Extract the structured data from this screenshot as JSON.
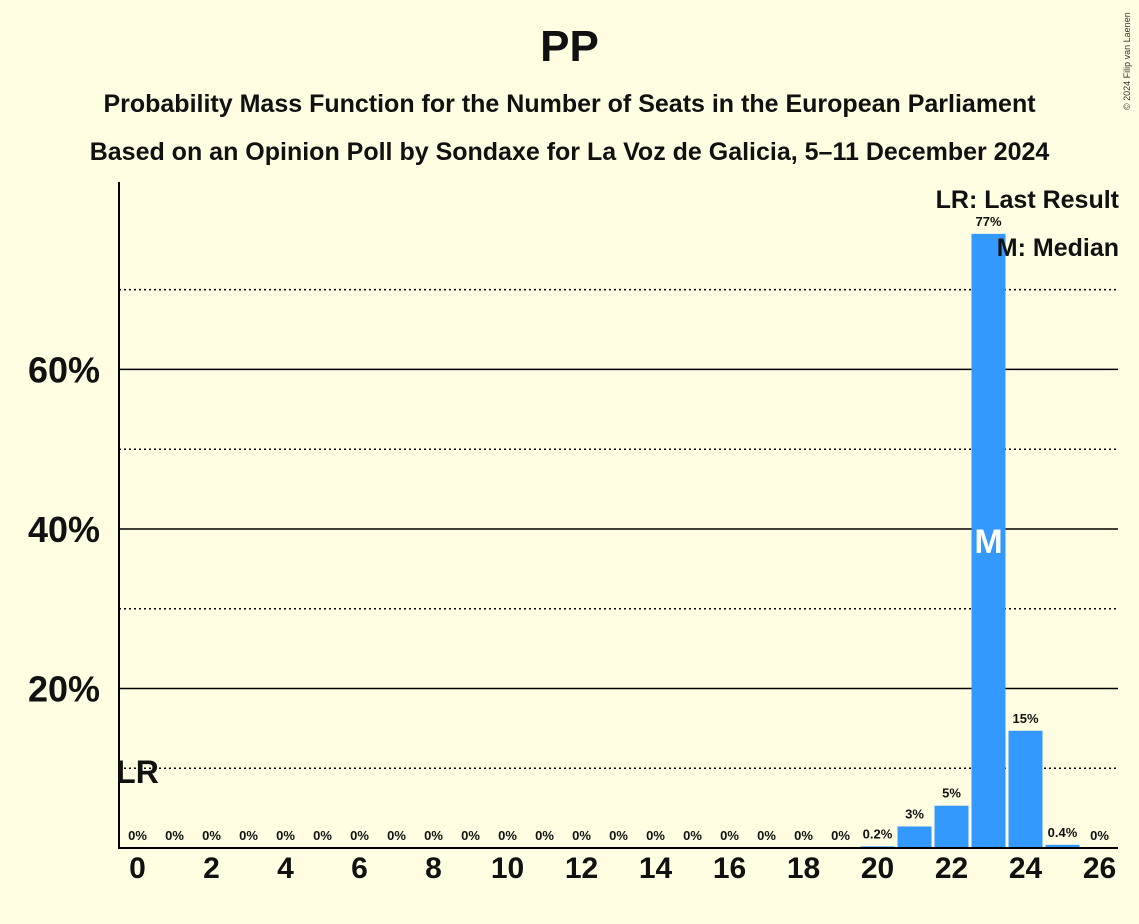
{
  "title": "PP",
  "subtitle1": "Probability Mass Function for the Number of Seats in the European Parliament",
  "subtitle2": "Based on an Opinion Poll by Sondaxe for La Voz de Galicia, 5–11 December 2024",
  "copyright": "© 2024 Filip van Laenen",
  "legend": {
    "last_result": "LR: Last Result",
    "median": "M: Median"
  },
  "colors": {
    "bar": "#3399FF",
    "background": "#FFFEE3"
  },
  "chart_data": {
    "type": "bar",
    "categories": [
      0,
      1,
      2,
      3,
      4,
      5,
      6,
      7,
      8,
      9,
      10,
      11,
      12,
      13,
      14,
      15,
      16,
      17,
      18,
      19,
      20,
      21,
      22,
      23,
      24,
      25,
      26
    ],
    "values": [
      0,
      0,
      0,
      0,
      0,
      0,
      0,
      0,
      0,
      0,
      0,
      0,
      0,
      0,
      0,
      0,
      0,
      0,
      0,
      0,
      0.2,
      2.7,
      5.3,
      77,
      14.7,
      0.4,
      0
    ],
    "labels": [
      "0%",
      "0%",
      "0%",
      "0%",
      "0%",
      "0%",
      "0%",
      "0%",
      "0%",
      "0%",
      "0%",
      "0%",
      "0%",
      "0%",
      "0%",
      "0%",
      "0%",
      "0%",
      "0%",
      "0%",
      "0.2%",
      "3%",
      "5%",
      "77%",
      "15%",
      "0.4%",
      "0%"
    ],
    "x_tick_labels": [
      "0",
      "2",
      "4",
      "6",
      "8",
      "10",
      "12",
      "14",
      "16",
      "18",
      "20",
      "22",
      "24",
      "26"
    ],
    "x_tick_values": [
      0,
      2,
      4,
      6,
      8,
      10,
      12,
      14,
      16,
      18,
      20,
      22,
      24,
      26
    ],
    "y_tick_labels": [
      "20%",
      "40%",
      "60%"
    ],
    "y_tick_values": [
      20,
      40,
      60
    ],
    "y_dotted_values": [
      10,
      30,
      50,
      70
    ],
    "ylim": [
      0,
      83.5
    ],
    "last_result_seat": 0,
    "last_result_marker": "LR",
    "median_seat": 23,
    "median_marker": "M"
  }
}
